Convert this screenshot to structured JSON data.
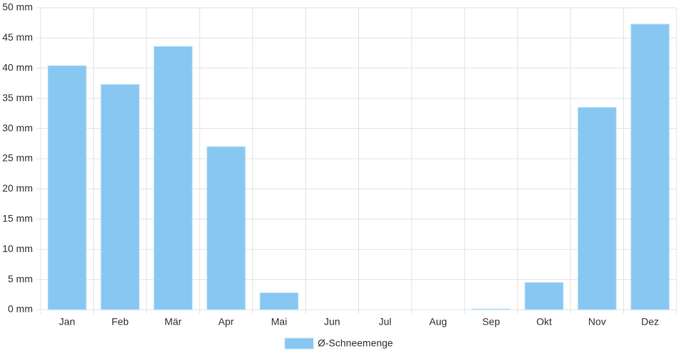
{
  "chart_data": {
    "type": "bar",
    "categories": [
      "Jan",
      "Feb",
      "Mär",
      "Apr",
      "Mai",
      "Jun",
      "Jul",
      "Aug",
      "Sep",
      "Okt",
      "Nov",
      "Dez"
    ],
    "series": [
      {
        "name": "Ø-Schneemenge",
        "color": "#88c7f2",
        "values": [
          40.4,
          37.3,
          43.6,
          27.0,
          2.8,
          0,
          0,
          0,
          0.1,
          4.5,
          33.5,
          47.3
        ]
      }
    ],
    "ylim": [
      0,
      50
    ],
    "yticks": [
      {
        "value": 0,
        "label": "0 mm"
      },
      {
        "value": 5,
        "label": "5 mm"
      },
      {
        "value": 10,
        "label": "10 mm"
      },
      {
        "value": 15,
        "label": "15 mm"
      },
      {
        "value": 20,
        "label": "20 mm"
      },
      {
        "value": 25,
        "label": "25 mm"
      },
      {
        "value": 30,
        "label": "30 mm"
      },
      {
        "value": 35,
        "label": "35 mm"
      },
      {
        "value": 40,
        "label": "40 mm"
      },
      {
        "value": 45,
        "label": "45 mm"
      },
      {
        "value": 50,
        "label": "50 mm"
      }
    ],
    "grid": true,
    "legend": "bottom"
  }
}
